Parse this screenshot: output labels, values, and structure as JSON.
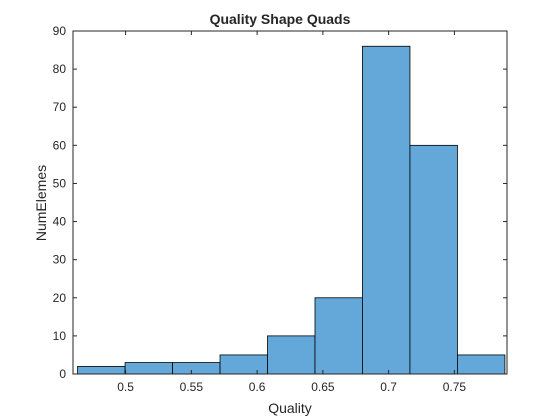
{
  "chart_data": {
    "type": "bar",
    "title": "Quality Shape Quads",
    "xlabel": "Quality",
    "ylabel": "NumElemes",
    "xlim": [
      0.46,
      0.79
    ],
    "ylim": [
      0,
      90
    ],
    "xticks": [
      0.5,
      0.55,
      0.6,
      0.65,
      0.7,
      0.75
    ],
    "xtick_labels": [
      "0.5",
      "0.55",
      "0.6",
      "0.65",
      "0.7",
      "0.75"
    ],
    "yticks": [
      0,
      10,
      20,
      30,
      40,
      50,
      60,
      70,
      80,
      90
    ],
    "ytick_labels": [
      "0",
      "10",
      "20",
      "30",
      "40",
      "50",
      "60",
      "70",
      "80",
      "90"
    ],
    "bin_edges": [
      0.4635,
      0.4996,
      0.5357,
      0.5718,
      0.6079,
      0.644,
      0.6801,
      0.7162,
      0.7523,
      0.7884
    ],
    "values": [
      2,
      3,
      3,
      5,
      10,
      20,
      86,
      60,
      5
    ],
    "bar_color": "#64A8D9",
    "edge_color": "#000000",
    "grid": false
  }
}
